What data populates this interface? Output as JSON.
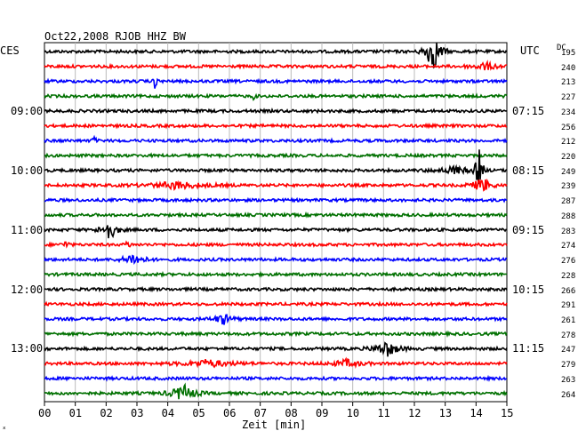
{
  "header": {
    "title": "Oct22,2008  RJOB HHZ BW",
    "left_tz": "CES",
    "right_tz": "UTC",
    "dc_label": "DC"
  },
  "footer": {
    "xlabel": "Zeit [min]",
    "corner_mark": "ˣ"
  },
  "colors": {
    "trace": [
      "#000000",
      "#ff0000",
      "#0000ff",
      "#007000"
    ],
    "grid": "#bbbbbb"
  },
  "chart_data": {
    "type": "line",
    "subtype": "helicorder",
    "xlabel": "Zeit [min]",
    "xlim": [
      0,
      15
    ],
    "x_ticks": [
      "00",
      "01",
      "02",
      "03",
      "04",
      "05",
      "06",
      "07",
      "08",
      "09",
      "10",
      "11",
      "12",
      "13",
      "14",
      "15"
    ],
    "rows": 24,
    "left_time_labels": [
      {
        "row": 4,
        "text": "09:00"
      },
      {
        "row": 8,
        "text": "10:00"
      },
      {
        "row": 12,
        "text": "11:00"
      },
      {
        "row": 16,
        "text": "12:00"
      },
      {
        "row": 20,
        "text": "13:00"
      }
    ],
    "right_time_labels": [
      {
        "row": 4,
        "text": "07:15"
      },
      {
        "row": 8,
        "text": "08:15"
      },
      {
        "row": 12,
        "text": "09:15"
      },
      {
        "row": 16,
        "text": "10:15"
      },
      {
        "row": 20,
        "text": "11:15"
      }
    ],
    "dc_values": [
      "195",
      "240",
      "213",
      "227",
      "234",
      "256",
      "212",
      "220",
      "249",
      "239",
      "287",
      "288",
      "283",
      "274",
      "276",
      "228",
      "266",
      "291",
      "261",
      "278",
      "247",
      "279",
      "263",
      "264"
    ],
    "events": [
      {
        "row": 0,
        "minute": 12.6,
        "amp": 24,
        "width": 0.25
      },
      {
        "row": 1,
        "minute": 14.3,
        "amp": 4,
        "width": 0.5
      },
      {
        "row": 2,
        "minute": 3.6,
        "amp": 12,
        "width": 0.05
      },
      {
        "row": 3,
        "minute": 6.8,
        "amp": 4,
        "width": 0.05
      },
      {
        "row": 6,
        "minute": 1.6,
        "amp": 6,
        "width": 0.05
      },
      {
        "row": 8,
        "minute": 13.3,
        "amp": 4,
        "width": 0.6
      },
      {
        "row": 8,
        "minute": 14.1,
        "amp": 26,
        "width": 0.1
      },
      {
        "row": 9,
        "minute": 4.3,
        "amp": 4,
        "width": 1.0
      },
      {
        "row": 9,
        "minute": 14.2,
        "amp": 9,
        "width": 0.3
      },
      {
        "row": 12,
        "minute": 2.1,
        "amp": 12,
        "width": 0.25
      },
      {
        "row": 13,
        "minute": 0.7,
        "amp": 4,
        "width": 0.1
      },
      {
        "row": 13,
        "minute": 2.7,
        "amp": 6,
        "width": 0.05
      },
      {
        "row": 14,
        "minute": 2.9,
        "amp": 7,
        "width": 0.35
      },
      {
        "row": 18,
        "minute": 5.8,
        "amp": 6,
        "width": 0.3
      },
      {
        "row": 20,
        "minute": 11.1,
        "amp": 9,
        "width": 0.4
      },
      {
        "row": 21,
        "minute": 5.3,
        "amp": 4,
        "width": 0.9
      },
      {
        "row": 21,
        "minute": 9.8,
        "amp": 4,
        "width": 0.5
      },
      {
        "row": 23,
        "minute": 4.5,
        "amp": 10,
        "width": 0.4
      }
    ]
  }
}
